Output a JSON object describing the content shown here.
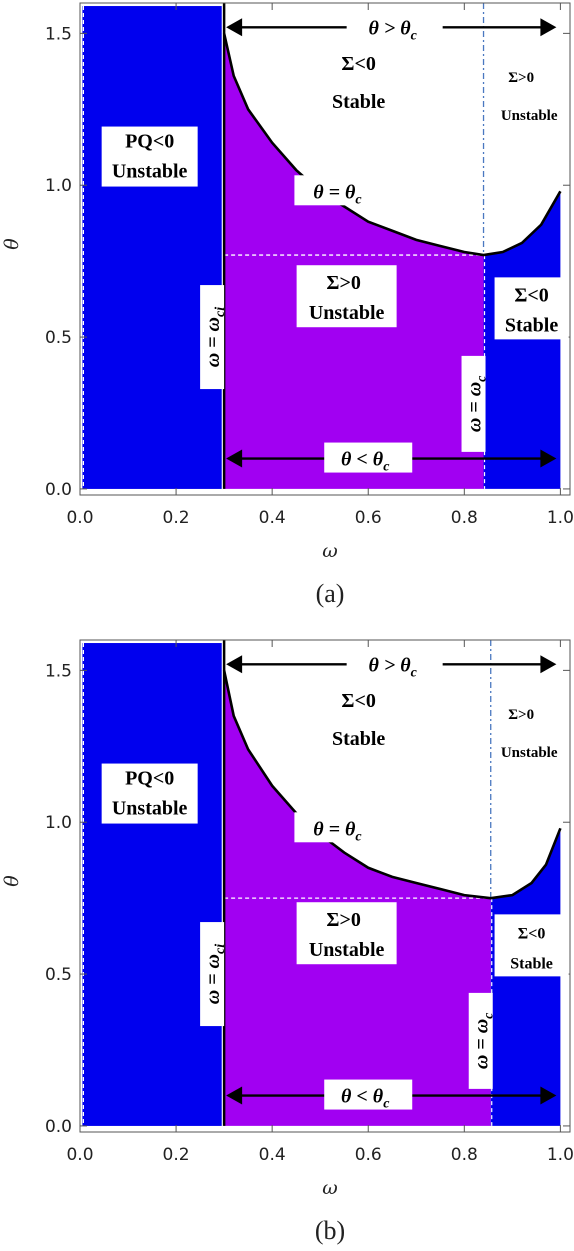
{
  "colors": {
    "blue": "#0000ee",
    "purple": "#a100f2",
    "curve": "#000000",
    "dash": "#4a78c0",
    "axis": "#555555"
  },
  "chart_data": [
    {
      "type": "area",
      "panel": "a",
      "caption": "(a)",
      "xlabel": "ω",
      "ylabel": "θ",
      "xlim": [
        0.0,
        1.02
      ],
      "ylim": [
        -0.02,
        1.6
      ],
      "xticks": [
        "0.0",
        "0.2",
        "0.4",
        "0.6",
        "0.8",
        "1.0"
      ],
      "yticks": [
        "0.0",
        "0.5",
        "1.0",
        "1.5"
      ],
      "omega_ci": 0.3,
      "omega_c": 0.84,
      "theta_c_min": 0.77,
      "curve": {
        "x": [
          0.3,
          0.32,
          0.35,
          0.4,
          0.45,
          0.5,
          0.55,
          0.6,
          0.65,
          0.7,
          0.75,
          0.8,
          0.84,
          0.88,
          0.92,
          0.96,
          1.0
        ],
        "y": [
          1.5,
          1.36,
          1.25,
          1.14,
          1.05,
          0.98,
          0.93,
          0.88,
          0.85,
          0.82,
          0.8,
          0.78,
          0.77,
          0.78,
          0.81,
          0.87,
          0.98
        ]
      },
      "labels": {
        "pq": "PQ<0",
        "unstable1": "Unstable",
        "sig_gt": "Σ>0",
        "unstable2": "Unstable",
        "sig_lt_top": "Σ<0",
        "stable_top": "Stable",
        "sig_gt_right": "Σ>0",
        "unstable_right": "Unstable",
        "sig_lt_right": "Σ<0",
        "stable_right": "Stable",
        "theta_eq": "θ = θ",
        "theta_gt": "θ > θ",
        "theta_lt": "θ < θ",
        "sub_c": "c",
        "omega_ci_label": "ω = ω",
        "sub_ci": "ci",
        "omega_c_label": "ω = ω",
        "sub_c2": "c"
      }
    },
    {
      "type": "area",
      "panel": "b",
      "caption": "(b)",
      "xlabel": "ω",
      "ylabel": "θ",
      "xlim": [
        0.0,
        1.02
      ],
      "ylim": [
        -0.02,
        1.6
      ],
      "xticks": [
        "0.0",
        "0.2",
        "0.4",
        "0.6",
        "0.8",
        "1.0"
      ],
      "yticks": [
        "0.0",
        "0.5",
        "1.0",
        "1.5"
      ],
      "omega_ci": 0.3,
      "omega_c": 0.855,
      "theta_c_min": 0.75,
      "curve": {
        "x": [
          0.3,
          0.32,
          0.35,
          0.4,
          0.45,
          0.5,
          0.55,
          0.6,
          0.65,
          0.7,
          0.75,
          0.8,
          0.855,
          0.9,
          0.94,
          0.97,
          1.0
        ],
        "y": [
          1.5,
          1.35,
          1.24,
          1.12,
          1.03,
          0.96,
          0.9,
          0.85,
          0.82,
          0.8,
          0.78,
          0.76,
          0.75,
          0.76,
          0.8,
          0.86,
          0.98
        ]
      },
      "labels": {
        "pq": "PQ<0",
        "unstable1": "Unstable",
        "sig_gt": "Σ>0",
        "unstable2": "Unstable",
        "sig_lt_top": "Σ<0",
        "stable_top": "Stable",
        "sig_gt_right": "Σ>0",
        "unstable_right": "Unstable",
        "sig_lt_right": "Σ<0",
        "stable_right": "Stable",
        "theta_eq": "θ = θ",
        "theta_gt": "θ > θ",
        "theta_lt": "θ < θ",
        "sub_c": "c",
        "omega_ci_label": "ω = ω",
        "sub_ci": "ci",
        "omega_c_label": "ω = ω",
        "sub_c2": "c"
      }
    }
  ]
}
